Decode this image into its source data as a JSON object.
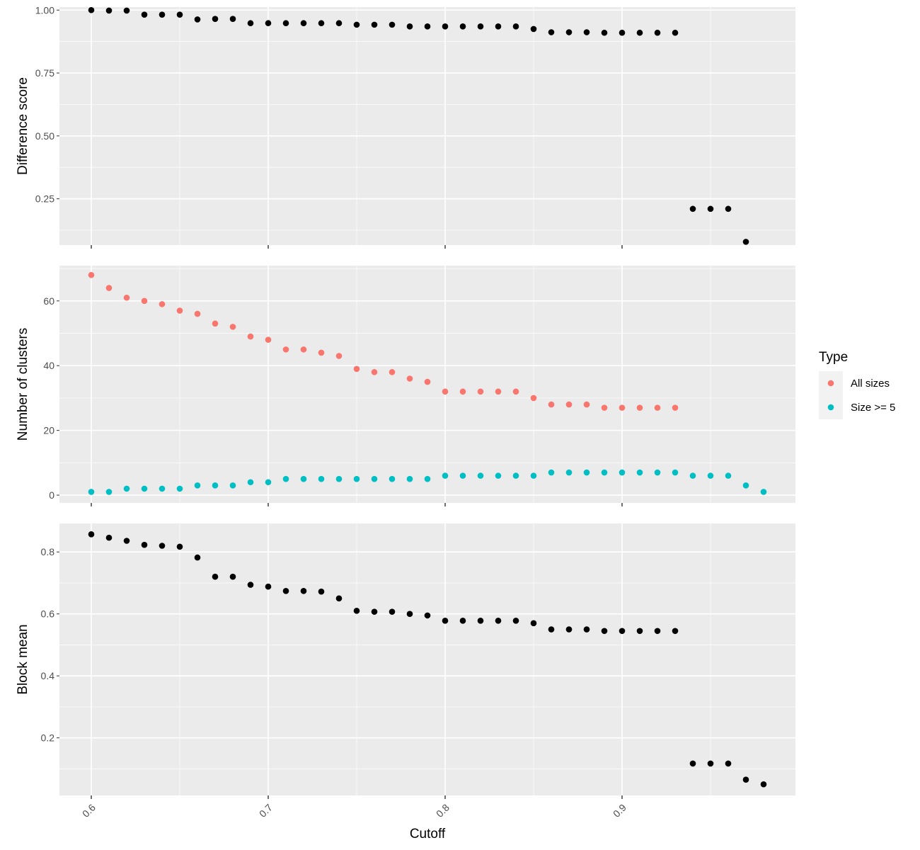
{
  "chart_data": [
    {
      "type": "scatter",
      "panel": "difference",
      "ylabel": "Difference score",
      "xlabel": "",
      "xlim": [
        0.582,
        0.998
      ],
      "ylim": [
        0.066,
        1.012
      ],
      "yticks": [
        0.25,
        0.5,
        0.75,
        1.0
      ],
      "ytick_labels": [
        "0.25",
        "0.50",
        "0.75",
        "1.00"
      ],
      "xticks": [
        0.6,
        0.7,
        0.8,
        0.9
      ],
      "grid": true,
      "series": [
        {
          "color": "#000000",
          "x": [
            0.6,
            0.61,
            0.62,
            0.63,
            0.64,
            0.65,
            0.66,
            0.67,
            0.68,
            0.69,
            0.7,
            0.71,
            0.72,
            0.73,
            0.74,
            0.75,
            0.76,
            0.77,
            0.78,
            0.79,
            0.8,
            0.81,
            0.82,
            0.83,
            0.84,
            0.85,
            0.86,
            0.87,
            0.88,
            0.89,
            0.9,
            0.91,
            0.92,
            0.93,
            0.94,
            0.95,
            0.96,
            0.97
          ],
          "y": [
            1.0,
            0.998,
            0.998,
            0.982,
            0.982,
            0.982,
            0.963,
            0.965,
            0.965,
            0.948,
            0.948,
            0.948,
            0.948,
            0.948,
            0.948,
            0.942,
            0.942,
            0.942,
            0.935,
            0.935,
            0.935,
            0.935,
            0.935,
            0.935,
            0.935,
            0.925,
            0.912,
            0.912,
            0.912,
            0.91,
            0.91,
            0.91,
            0.91,
            0.91,
            0.21,
            0.21,
            0.21,
            0.079
          ]
        }
      ]
    },
    {
      "type": "scatter",
      "panel": "clusters",
      "ylabel": "Number of clusters",
      "xlabel": "",
      "xlim": [
        0.582,
        0.998
      ],
      "ylim": [
        -2.4,
        70.9
      ],
      "yticks": [
        0,
        20,
        40,
        60
      ],
      "ytick_labels": [
        "0",
        "20",
        "40",
        "60"
      ],
      "xticks": [
        0.6,
        0.7,
        0.8,
        0.9
      ],
      "grid": true,
      "legend": {
        "title": "Type",
        "placement": "right"
      },
      "series": [
        {
          "name": "All sizes",
          "color": "#F8766D",
          "x": [
            0.6,
            0.61,
            0.62,
            0.63,
            0.64,
            0.65,
            0.66,
            0.67,
            0.68,
            0.69,
            0.7,
            0.71,
            0.72,
            0.73,
            0.74,
            0.75,
            0.76,
            0.77,
            0.78,
            0.79,
            0.8,
            0.81,
            0.82,
            0.83,
            0.84,
            0.85,
            0.86,
            0.87,
            0.88,
            0.89,
            0.9,
            0.91,
            0.92,
            0.93
          ],
          "y": [
            68,
            64,
            61,
            60,
            59,
            57,
            56,
            53,
            52,
            49,
            48,
            45,
            45,
            44,
            43,
            39,
            38,
            38,
            36,
            35,
            32,
            32,
            32,
            32,
            32,
            30,
            28,
            28,
            28,
            27,
            27,
            27,
            27,
            27
          ]
        },
        {
          "name": "Size >= 5",
          "color": "#00BFC4",
          "x": [
            0.6,
            0.61,
            0.62,
            0.63,
            0.64,
            0.65,
            0.66,
            0.67,
            0.68,
            0.69,
            0.7,
            0.71,
            0.72,
            0.73,
            0.74,
            0.75,
            0.76,
            0.77,
            0.78,
            0.79,
            0.8,
            0.81,
            0.82,
            0.83,
            0.84,
            0.85,
            0.86,
            0.87,
            0.88,
            0.89,
            0.9,
            0.91,
            0.92,
            0.93,
            0.94,
            0.95,
            0.96,
            0.97,
            0.98
          ],
          "y": [
            1,
            1,
            2,
            2,
            2,
            2,
            3,
            3,
            3,
            4,
            4,
            5,
            5,
            5,
            5,
            5,
            5,
            5,
            5,
            5,
            6,
            6,
            6,
            6,
            6,
            6,
            7,
            7,
            7,
            7,
            7,
            7,
            7,
            7,
            6,
            6,
            6,
            3,
            1
          ]
        }
      ]
    },
    {
      "type": "scatter",
      "panel": "blockmean",
      "ylabel": "Block mean",
      "xlabel": "Cutoff",
      "xlim": [
        0.582,
        0.998
      ],
      "ylim": [
        0.014,
        0.892
      ],
      "yticks": [
        0.2,
        0.4,
        0.6,
        0.8
      ],
      "ytick_labels": [
        "0.2",
        "0.4",
        "0.6",
        "0.8"
      ],
      "xticks": [
        0.6,
        0.7,
        0.8,
        0.9
      ],
      "xtick_labels": [
        "0.6",
        "0.7",
        "0.8",
        "0.9"
      ],
      "grid": true,
      "series": [
        {
          "color": "#000000",
          "x": [
            0.6,
            0.61,
            0.62,
            0.63,
            0.64,
            0.65,
            0.66,
            0.67,
            0.68,
            0.69,
            0.7,
            0.71,
            0.72,
            0.73,
            0.74,
            0.75,
            0.76,
            0.77,
            0.78,
            0.79,
            0.8,
            0.81,
            0.82,
            0.83,
            0.84,
            0.85,
            0.86,
            0.87,
            0.88,
            0.89,
            0.9,
            0.91,
            0.92,
            0.93,
            0.94,
            0.95,
            0.96,
            0.97,
            0.98
          ],
          "y": [
            0.857,
            0.846,
            0.836,
            0.823,
            0.82,
            0.817,
            0.782,
            0.72,
            0.72,
            0.694,
            0.688,
            0.674,
            0.674,
            0.672,
            0.65,
            0.61,
            0.607,
            0.607,
            0.6,
            0.595,
            0.578,
            0.578,
            0.578,
            0.578,
            0.578,
            0.57,
            0.55,
            0.55,
            0.55,
            0.545,
            0.545,
            0.545,
            0.545,
            0.545,
            0.117,
            0.117,
            0.117,
            0.065,
            0.05
          ]
        }
      ]
    }
  ],
  "colors": {
    "panel_bg": "#EBEBEB",
    "grid_major": "#FFFFFF",
    "tick_color": "#333333"
  }
}
